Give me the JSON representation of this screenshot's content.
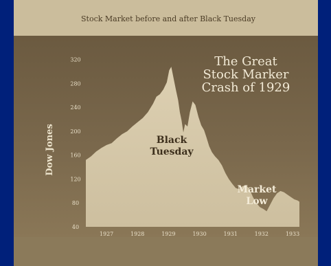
{
  "chart_data": {
    "type": "area",
    "title": "Stock Market before and after Black Tuesday",
    "headline": [
      "The Great",
      "Stock Marker",
      "Crash of 1929"
    ],
    "ylabel": "Dow Jones",
    "xlabel": "",
    "ylim": [
      40,
      330
    ],
    "y_ticks": [
      40,
      80,
      120,
      160,
      200,
      240,
      280,
      320
    ],
    "y_tick_labels": [
      "40",
      "80",
      "120",
      "160",
      "200",
      "240",
      "280",
      "320"
    ],
    "xlim": [
      1927,
      1933.2
    ],
    "x_ticks": [
      1927.6,
      1928.5,
      1929.4,
      1930.3,
      1931.2,
      1932.1,
      1933.0
    ],
    "x_tick_labels": [
      "1927",
      "1928",
      "1929",
      "1930",
      "1931",
      "1932",
      "1933"
    ],
    "grid": false,
    "annotations": [
      {
        "lines": [
          "Black",
          "Tuesday"
        ],
        "x": 1929.95,
        "y": 205
      },
      {
        "lines": [
          "Market",
          "Low"
        ],
        "x": 1932.35,
        "y": 95
      }
    ],
    "series": [
      {
        "x": [
          1927.0,
          1927.15,
          1927.3,
          1927.45,
          1927.6,
          1927.75,
          1927.9,
          1928.05,
          1928.2,
          1928.35,
          1928.5,
          1928.65,
          1928.8,
          1928.95,
          1929.05,
          1929.15,
          1929.25,
          1929.35,
          1929.42,
          1929.48,
          1929.55,
          1929.62,
          1929.68,
          1929.73,
          1929.78,
          1929.83,
          1929.88,
          1929.95,
          1930.02,
          1930.1,
          1930.18,
          1930.27,
          1930.35,
          1930.43,
          1930.5,
          1930.58,
          1930.66,
          1930.75,
          1930.85,
          1930.95,
          1931.05,
          1931.15,
          1931.25,
          1931.35,
          1931.45,
          1931.55,
          1931.65,
          1931.75,
          1931.85,
          1931.95,
          1932.05,
          1932.15,
          1932.25,
          1932.35,
          1932.45,
          1932.55,
          1932.65,
          1932.75,
          1932.85,
          1932.95,
          1933.05,
          1933.15,
          1933.2
        ],
        "y": [
          152,
          158,
          166,
          172,
          177,
          180,
          188,
          195,
          200,
          208,
          215,
          222,
          232,
          246,
          258,
          262,
          270,
          282,
          302,
          308,
          288,
          268,
          252,
          232,
          218,
          198,
          212,
          208,
          232,
          250,
          244,
          224,
          210,
          202,
          190,
          175,
          165,
          158,
          152,
          143,
          130,
          120,
          112,
          105,
          103,
          108,
          110,
          103,
          90,
          80,
          73,
          70,
          66,
          77,
          88,
          96,
          100,
          98,
          94,
          90,
          86,
          84,
          82
        ]
      }
    ]
  }
}
